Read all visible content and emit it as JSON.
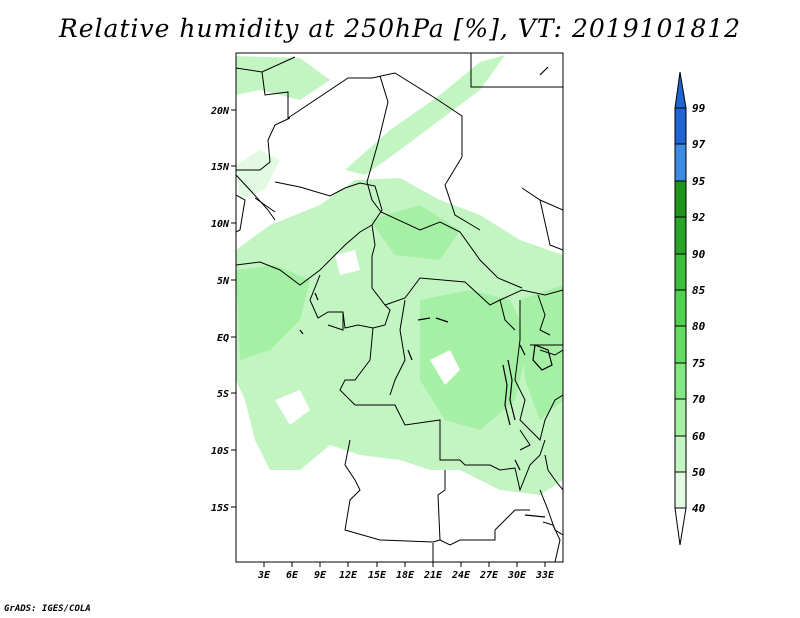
{
  "title": "Relative humidity at 250hPa [%], VT: 2019101812",
  "credit": "GrADS: IGES/COLA",
  "lat_labels": [
    "20N",
    "15N",
    "10N",
    "5N",
    "EQ",
    "5S",
    "10S",
    "15S"
  ],
  "lon_labels": [
    "3E",
    "6E",
    "9E",
    "12E",
    "15E",
    "18E",
    "21E",
    "24E",
    "27E",
    "30E",
    "33E"
  ],
  "colorbar": {
    "labels": [
      "99",
      "97",
      "95",
      "92",
      "90",
      "85",
      "80",
      "75",
      "70",
      "60",
      "50",
      "40"
    ],
    "colors": [
      "#1e64d2",
      "#3c8ce6",
      "#1e961e",
      "#28a428",
      "#3cbe3c",
      "#50d250",
      "#64dc64",
      "#82e882",
      "#a5f0a5",
      "#c3f5c3",
      "#e1fae1",
      "#ffffff"
    ],
    "top_color": "#1e64d2"
  },
  "shading": {
    "light": "#c3f5c3",
    "mid": "#a5f0a5",
    "pale": "#e1fae1"
  }
}
